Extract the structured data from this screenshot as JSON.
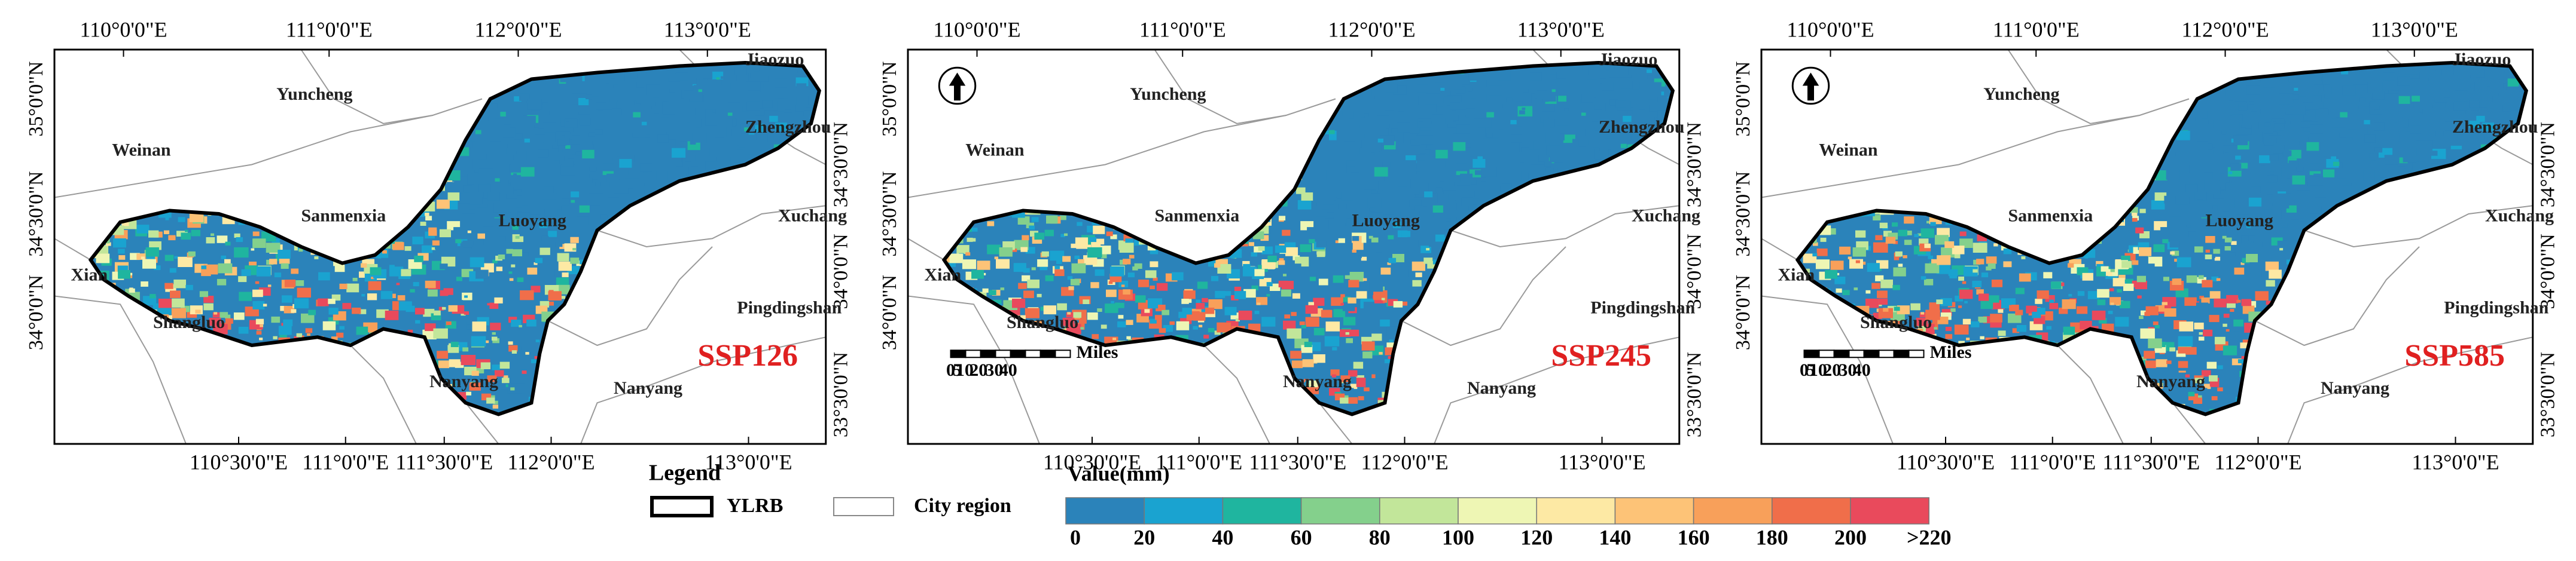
{
  "panels": [
    {
      "scenario": "SSP126",
      "top_ticks": [
        "110°0'0\"E",
        "111°0'0\"E",
        "112°0'0\"E",
        "113°0'0\"E"
      ],
      "bottom_ticks": [
        "110°30'0\"E",
        "111°0'0\"E",
        "111°30'0\"E",
        "112°0'0\"E",
        "113°0'0\"E"
      ],
      "left_ticks": [
        "35°0'0\"N",
        "34°30'0\"N",
        "34°0'0\"N"
      ],
      "right_ticks": [
        "34°30'0\"N",
        "34°0'0\"N",
        "33°30'0\"N"
      ],
      "cities": [
        "Jiaozuo",
        "Yuncheng",
        "Weinan",
        "Zhengzhou",
        "Sanmenxia",
        "Luoyang",
        "Xuchang",
        "Xian",
        "Pingdingshan",
        "Shangluo",
        "Nanyang",
        "Nanyang"
      ]
    },
    {
      "scenario": "SSP245",
      "top_ticks": [
        "110°0'0\"E",
        "111°0'0\"E",
        "112°0'0\"E",
        "113°0'0\"E"
      ],
      "bottom_ticks": [
        "110°30'0\"E",
        "111°0'0\"E",
        "111°30'0\"E",
        "112°0'0\"E",
        "113°0'0\"E"
      ],
      "left_ticks": [
        "35°0'0\"N",
        "34°30'0\"N",
        "34°0'0\"N"
      ],
      "right_ticks": [
        "34°30'0\"N",
        "34°0'0\"N",
        "33°30'0\"N"
      ],
      "cities": [
        "Jiaozuo",
        "Yuncheng",
        "Weinan",
        "Zhengzhou",
        "Sanmenxia",
        "Luoyang",
        "Xuchang",
        "Xian",
        "Pingdingshan",
        "Shangluo",
        "Nanyang",
        "Nanyang"
      ],
      "scale_bar": {
        "unit": "Miles",
        "labels": [
          "0",
          "5",
          "10",
          "20",
          "30",
          "40"
        ]
      }
    },
    {
      "scenario": "SSP585",
      "top_ticks": [
        "110°0'0\"E",
        "111°0'0\"E",
        "112°0'0\"E",
        "113°0'0\"E"
      ],
      "bottom_ticks": [
        "110°30'0\"E",
        "111°0'0\"E",
        "111°30'0\"E",
        "112°0'0\"E",
        "113°0'0\"E"
      ],
      "left_ticks": [
        "35°0'0\"N",
        "34°30'0\"N",
        "34°0'0\"N"
      ],
      "right_ticks": [
        "34°30'0\"N",
        "34°0'0\"N",
        "33°30'0\"N"
      ],
      "cities": [
        "Jiaozuo",
        "Yuncheng",
        "Weinan",
        "Zhengzhou",
        "Sanmenxia",
        "Luoyang",
        "Xuchang",
        "Xian",
        "Pingdingshan",
        "Shangluo",
        "Nanyang",
        "Nanyang"
      ],
      "scale_bar": {
        "unit": "Miles",
        "labels": [
          "0",
          "5",
          "10",
          "20",
          "30",
          "40"
        ]
      }
    }
  ],
  "legend": {
    "title": "Legend",
    "items": [
      "YLRB",
      "City region"
    ],
    "value_title": "Value(mm)",
    "bin_labels": [
      "0",
      "20",
      "40",
      "60",
      "80",
      "100",
      "120",
      "140",
      "160",
      "180",
      "200",
      ">220"
    ],
    "colors": [
      "#2b83ba",
      "#1aa3d0",
      "#1fb59f",
      "#84d08c",
      "#c2e69a",
      "#eef6b4",
      "#fde9a4",
      "#fdc377",
      "#f8a05a",
      "#f06e4a",
      "#e94a5c"
    ]
  }
}
